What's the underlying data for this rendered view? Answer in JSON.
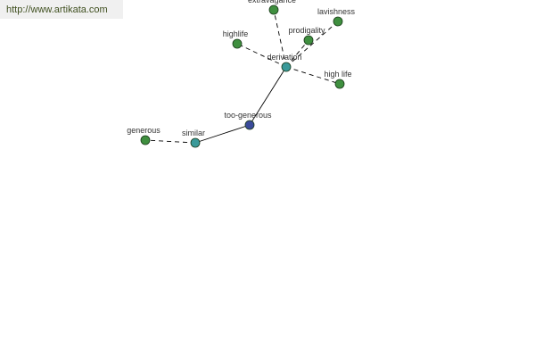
{
  "watermark": "http://www.artikata.com",
  "colors": {
    "center": "#3a9a9a",
    "root": "#3a4a9a",
    "leaf": "#3f8f3f",
    "edge": "#000000"
  },
  "nodes": [
    {
      "id": "too-generous",
      "label": "too-generous",
      "kind": "root"
    },
    {
      "id": "similar",
      "label": "similar",
      "kind": "center"
    },
    {
      "id": "generous",
      "label": "generous",
      "kind": "leaf"
    },
    {
      "id": "derivation",
      "label": "derivation",
      "kind": "center"
    },
    {
      "id": "extravagance",
      "label": "extravagance",
      "kind": "leaf"
    },
    {
      "id": "lavishness",
      "label": "lavishness",
      "kind": "leaf"
    },
    {
      "id": "prodigality",
      "label": "prodigality",
      "kind": "leaf"
    },
    {
      "id": "highlife",
      "label": "highlife",
      "kind": "leaf"
    },
    {
      "id": "high-life",
      "label": "high life",
      "kind": "leaf"
    }
  ],
  "edges": [
    {
      "from": "too-generous",
      "to": "similar",
      "style": "solid"
    },
    {
      "from": "too-generous",
      "to": "derivation",
      "style": "solid"
    },
    {
      "from": "similar",
      "to": "generous",
      "style": "dashed"
    },
    {
      "from": "derivation",
      "to": "extravagance",
      "style": "dashed"
    },
    {
      "from": "derivation",
      "to": "lavishness",
      "style": "dashed"
    },
    {
      "from": "derivation",
      "to": "prodigality",
      "style": "dashed"
    },
    {
      "from": "derivation",
      "to": "highlife",
      "style": "dashed"
    },
    {
      "from": "derivation",
      "to": "high-life",
      "style": "dashed"
    }
  ]
}
